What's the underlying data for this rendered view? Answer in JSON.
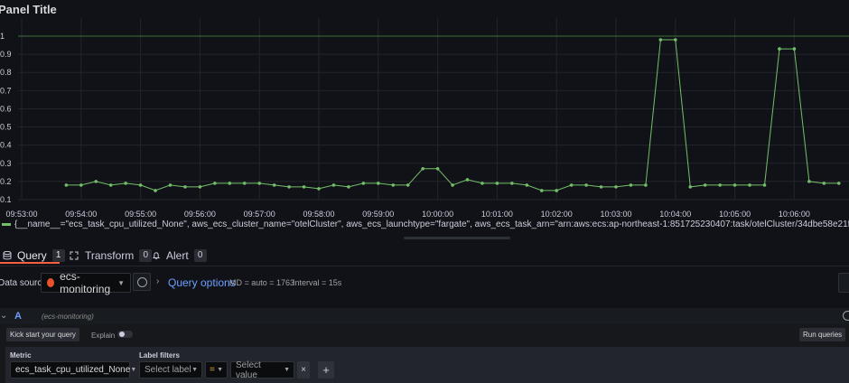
{
  "panel": {
    "title": "Panel Title"
  },
  "chart_data": {
    "type": "line",
    "title": "Panel Title",
    "y_ticks": [
      "0.1",
      "0.2",
      "0.3",
      "0.4",
      "0.5",
      "0.6",
      "0.7",
      "0.8",
      "0.9",
      "1"
    ],
    "x_ticks": [
      "09:53:00",
      "09:54:00",
      "09:55:00",
      "09:56:00",
      "09:57:00",
      "09:58:00",
      "09:59:00",
      "10:00:00",
      "10:01:00",
      "10:02:00",
      "10:03:00",
      "10:04:00",
      "10:05:00",
      "10:06:00"
    ],
    "ylim": [
      0.1,
      1.0
    ],
    "xlim": [
      "09:53:00",
      "10:06:45"
    ],
    "grid": true,
    "threshold_line": 1,
    "series": [
      {
        "name": "{__name__=\"ecs_task_cpu_utilized_None\", aws_ecs_cluster_name=\"otelCluster\", aws_ecs_launchtype=\"fargate\", aws_ecs_task_arn=\"arn:aws:ecs:ap-northeast-1:851725230407:task/otelCluster/34dbe58e21f247578b78e9d04796f4a1\", aws_ecs_task_family=\"firelens-example-c",
        "color": "#73bf69",
        "x": [
          "09:53:45",
          "09:54:00",
          "09:54:15",
          "09:54:30",
          "09:54:45",
          "09:55:00",
          "09:55:15",
          "09:55:30",
          "09:55:45",
          "09:56:00",
          "09:56:15",
          "09:56:30",
          "09:56:45",
          "09:57:00",
          "09:57:15",
          "09:57:30",
          "09:57:45",
          "09:58:00",
          "09:58:15",
          "09:58:30",
          "09:58:45",
          "09:59:00",
          "09:59:15",
          "09:59:30",
          "09:59:45",
          "10:00:00",
          "10:00:15",
          "10:00:30",
          "10:00:45",
          "10:01:00",
          "10:01:15",
          "10:01:30",
          "10:01:45",
          "10:02:00",
          "10:02:15",
          "10:02:30",
          "10:02:45",
          "10:03:00",
          "10:03:15",
          "10:03:30",
          "10:03:45",
          "10:04:00",
          "10:04:15",
          "10:04:30",
          "10:04:45",
          "10:05:00",
          "10:05:15",
          "10:05:30",
          "10:05:45",
          "10:06:00",
          "10:06:15",
          "10:06:30",
          "10:06:45"
        ],
        "values": [
          0.18,
          0.18,
          0.2,
          0.18,
          0.19,
          0.18,
          0.15,
          0.18,
          0.17,
          0.17,
          0.19,
          0.19,
          0.19,
          0.19,
          0.18,
          0.17,
          0.17,
          0.16,
          0.18,
          0.17,
          0.19,
          0.19,
          0.18,
          0.18,
          0.27,
          0.27,
          0.18,
          0.21,
          0.19,
          0.19,
          0.19,
          0.18,
          0.15,
          0.15,
          0.18,
          0.18,
          0.17,
          0.17,
          0.18,
          0.18,
          0.98,
          0.98,
          0.17,
          0.18,
          0.18,
          0.18,
          0.18,
          0.18,
          0.93,
          0.93,
          0.2,
          0.19,
          0.19
        ]
      }
    ]
  },
  "legend": {
    "text": "{__name__=\"ecs_task_cpu_utilized_None\", aws_ecs_cluster_name=\"otelCluster\", aws_ecs_launchtype=\"fargate\", aws_ecs_task_arn=\"arn:aws:ecs:ap-northeast-1:851725230407:task/otelCluster/34dbe58e21f247578b78e9d04796f4a1\", aws_ecs_task_family=\"firelens-example-c"
  },
  "tabs": [
    {
      "label": "Query",
      "count": "1",
      "active": true
    },
    {
      "label": "Transform",
      "count": "0"
    },
    {
      "label": "Alert",
      "count": "0"
    }
  ],
  "datasource": {
    "label": "Data source",
    "selected": "ecs-monitoring",
    "query_options_label": "Query options",
    "md": "MD = auto = 1763",
    "interval": "Interval = 15s"
  },
  "query": {
    "ref_id": "A",
    "datasource_hint": "(ecs-monitoring)",
    "kick_start_label": "Kick start your query",
    "explain_label": "Explain",
    "explain_on": false,
    "run_label": "Run queries",
    "metric_label": "Metric",
    "metric_value": "ecs_task_cpu_utilized_None",
    "label_filters_label": "Label filters",
    "select_label_placeholder": "Select label",
    "operator": "=",
    "select_value_placeholder": "Select value",
    "remove_symbol": "×",
    "add_symbol": "+"
  },
  "colors": {
    "series": "#73bf69",
    "accent": "#f55f3e",
    "link": "#6e9fff",
    "bg": "#111217"
  }
}
